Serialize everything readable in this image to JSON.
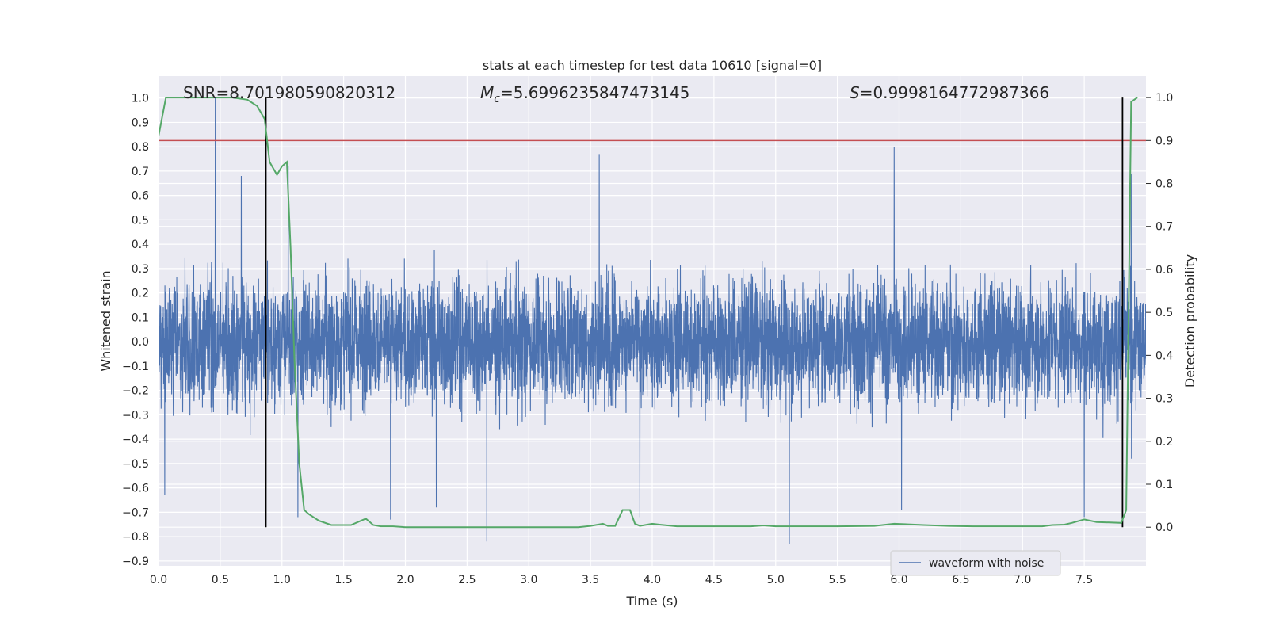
{
  "chart_data": {
    "type": "line",
    "title": "stats at each timestep for test data 10610 [signal=0]",
    "xlabel": "Time (s)",
    "ylabel": "Whitened strain",
    "ylabel_right": "Detection probability",
    "xlim": [
      0.0,
      8.0
    ],
    "ylim": [
      -0.92,
      1.09
    ],
    "ylim_right": [
      -0.09,
      1.05
    ],
    "x_ticks": [
      "0.0",
      "0.5",
      "1.0",
      "1.5",
      "2.0",
      "2.5",
      "3.0",
      "3.5",
      "4.0",
      "4.5",
      "5.0",
      "5.5",
      "6.0",
      "6.5",
      "7.0",
      "7.5"
    ],
    "y_ticks": [
      "1.0",
      "0.9",
      "0.8",
      "0.7",
      "0.6",
      "0.5",
      "0.4",
      "0.3",
      "0.2",
      "0.1",
      "0.0",
      "−0.1",
      "−0.2",
      "−0.3",
      "−0.4",
      "−0.5",
      "−0.6",
      "−0.7",
      "−0.8",
      "−0.9"
    ],
    "y_ticks_right": [
      "1.0",
      "0.9",
      "0.8",
      "0.7",
      "0.6",
      "0.5",
      "0.4",
      "0.3",
      "0.2",
      "0.1",
      "0.0"
    ],
    "grid": true,
    "legend": {
      "placement": "lower-right",
      "entries": [
        "waveform with noise"
      ]
    },
    "annotations": {
      "snr": "SNR=8.701980590820312",
      "mc_symbol": "M",
      "mc_sub": "c",
      "mc_value": "=5.6996235847473145",
      "s_symbol": "S",
      "s_value": "=0.9998164772987366"
    },
    "threshold_right": 0.9,
    "vlines_x": [
      0.87,
      7.81
    ],
    "strain": {
      "name": "waveform with noise",
      "x_range": [
        0.0,
        8.0
      ],
      "typical_amplitude": 0.25,
      "peaks": [
        {
          "x": 0.46,
          "y": 1.0
        },
        {
          "x": 3.57,
          "y": 0.77
        },
        {
          "x": 5.96,
          "y": 0.8
        },
        {
          "x": 1.05,
          "y": 0.72
        },
        {
          "x": 0.67,
          "y": 0.68
        },
        {
          "x": 7.88,
          "y": 0.69
        },
        {
          "x": 5.11,
          "y": -0.83
        },
        {
          "x": 2.66,
          "y": -0.82
        },
        {
          "x": 1.88,
          "y": -0.73
        },
        {
          "x": 3.9,
          "y": -0.72
        },
        {
          "x": 1.13,
          "y": -0.72
        },
        {
          "x": 7.5,
          "y": -0.72
        },
        {
          "x": 2.25,
          "y": -0.68
        },
        {
          "x": 0.05,
          "y": -0.63
        },
        {
          "x": 6.02,
          "y": -0.69
        }
      ]
    },
    "probability": {
      "name": "",
      "x": [
        0.0,
        0.06,
        0.2,
        0.4,
        0.6,
        0.72,
        0.8,
        0.86,
        0.9,
        0.96,
        1.0,
        1.04,
        1.07,
        1.1,
        1.14,
        1.18,
        1.22,
        1.3,
        1.4,
        1.5,
        1.56,
        1.64,
        1.68,
        1.74,
        1.8,
        1.9,
        2.0,
        2.5,
        3.0,
        3.4,
        3.5,
        3.6,
        3.64,
        3.7,
        3.76,
        3.82,
        3.86,
        3.9,
        4.0,
        4.06,
        4.2,
        4.4,
        4.6,
        4.8,
        4.9,
        5.0,
        5.1,
        5.2,
        5.5,
        5.8,
        5.96,
        6.2,
        6.4,
        6.6,
        7.0,
        7.16,
        7.24,
        7.34,
        7.4,
        7.5,
        7.6,
        7.8,
        7.84,
        7.88,
        7.93
      ],
      "y": [
        0.91,
        1.0,
        1.0,
        1.0,
        1.0,
        0.995,
        0.98,
        0.95,
        0.85,
        0.82,
        0.84,
        0.85,
        0.65,
        0.4,
        0.15,
        0.04,
        0.03,
        0.015,
        0.005,
        0.005,
        0.005,
        0.015,
        0.02,
        0.005,
        0.002,
        0.002,
        0.0,
        0.0,
        0.0,
        0.0,
        0.003,
        0.008,
        0.003,
        0.003,
        0.04,
        0.04,
        0.008,
        0.003,
        0.008,
        0.006,
        0.002,
        0.002,
        0.002,
        0.002,
        0.004,
        0.002,
        0.002,
        0.002,
        0.002,
        0.003,
        0.008,
        0.005,
        0.003,
        0.002,
        0.002,
        0.002,
        0.005,
        0.006,
        0.01,
        0.018,
        0.012,
        0.01,
        0.04,
        0.99,
        1.0
      ]
    },
    "colors": {
      "background": "#eaeaf2",
      "grid": "#ffffff",
      "strain": "#4c72b0",
      "probability": "#55a868",
      "threshold": "#c44e52",
      "vline": "#000000",
      "text": "#262626"
    }
  }
}
